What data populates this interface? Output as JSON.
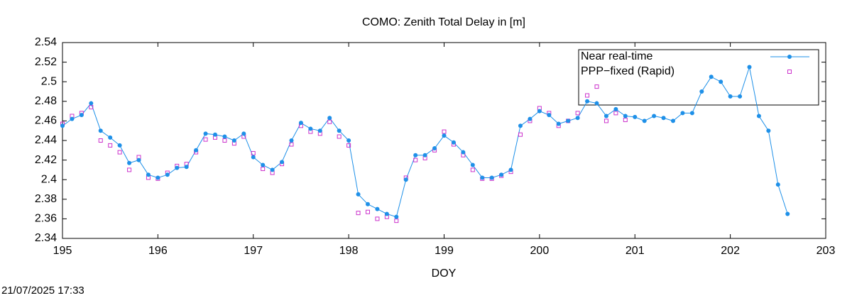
{
  "chart_data": {
    "type": "scatter-line",
    "title": "COMO: Zenith Total Delay in [m]",
    "x_label": "DOY",
    "timestamp": "21/07/2025 17:33",
    "xlim": [
      195,
      203
    ],
    "xticks": [
      195,
      196,
      197,
      198,
      199,
      200,
      201,
      202,
      203
    ],
    "ylim": [
      2.34,
      2.54
    ],
    "yticks": [
      2.34,
      2.36,
      2.38,
      2.4,
      2.42,
      2.44,
      2.46,
      2.48,
      2.5,
      2.52,
      2.54
    ],
    "legend": "top-right",
    "series": [
      {
        "name": "Near real-time",
        "color": "#1e90e8",
        "marker": "circle",
        "line": true,
        "x": [
          195.0,
          195.1,
          195.2,
          195.3,
          195.4,
          195.5,
          195.6,
          195.7,
          195.8,
          195.9,
          196.0,
          196.1,
          196.2,
          196.3,
          196.4,
          196.5,
          196.6,
          196.7,
          196.8,
          196.9,
          197.0,
          197.1,
          197.2,
          197.3,
          197.4,
          197.5,
          197.6,
          197.7,
          197.8,
          197.9,
          198.0,
          198.1,
          198.2,
          198.3,
          198.4,
          198.5,
          198.6,
          198.7,
          198.8,
          198.9,
          199.0,
          199.1,
          199.2,
          199.3,
          199.4,
          199.5,
          199.6,
          199.7,
          199.8,
          199.9,
          200.0,
          200.1,
          200.2,
          200.3,
          200.4,
          200.5,
          200.6,
          200.7,
          200.8,
          200.9,
          201.0,
          201.1,
          201.2,
          201.3,
          201.4,
          201.5,
          201.6,
          201.7,
          201.8,
          201.9,
          202.0,
          202.1,
          202.2,
          202.3,
          202.4,
          202.5,
          202.6
        ],
        "values": [
          2.455,
          2.462,
          2.466,
          2.478,
          2.45,
          2.443,
          2.435,
          2.417,
          2.42,
          2.405,
          2.402,
          2.405,
          2.412,
          2.413,
          2.43,
          2.447,
          2.446,
          2.444,
          2.44,
          2.447,
          2.423,
          2.415,
          2.41,
          2.418,
          2.44,
          2.458,
          2.452,
          2.45,
          2.463,
          2.45,
          2.44,
          2.385,
          2.375,
          2.37,
          2.365,
          2.362,
          2.4,
          2.425,
          2.425,
          2.432,
          2.445,
          2.438,
          2.428,
          2.415,
          2.402,
          2.402,
          2.405,
          2.41,
          2.455,
          2.462,
          2.47,
          2.466,
          2.457,
          2.46,
          2.463,
          2.48,
          2.478,
          2.465,
          2.472,
          2.465,
          2.464,
          2.46,
          2.465,
          2.463,
          2.46,
          2.468,
          2.468,
          2.49,
          2.505,
          2.5,
          2.485,
          2.485,
          2.515,
          2.465,
          2.45,
          2.395,
          2.365
        ]
      },
      {
        "name": "PPP−fixed (Rapid)",
        "color": "#cc33cc",
        "marker": "square",
        "line": false,
        "x": [
          195.0,
          195.1,
          195.2,
          195.3,
          195.4,
          195.5,
          195.6,
          195.7,
          195.8,
          195.9,
          196.0,
          196.1,
          196.2,
          196.3,
          196.4,
          196.5,
          196.6,
          196.7,
          196.8,
          196.9,
          197.0,
          197.1,
          197.2,
          197.3,
          197.4,
          197.5,
          197.6,
          197.7,
          197.8,
          197.9,
          198.0,
          198.1,
          198.2,
          198.3,
          198.4,
          198.5,
          198.6,
          198.7,
          198.8,
          198.9,
          199.0,
          199.1,
          199.2,
          199.3,
          199.4,
          199.5,
          199.6,
          199.7,
          199.8,
          199.9,
          200.0,
          200.1,
          200.2,
          200.3,
          200.4,
          200.5,
          200.6,
          200.7,
          200.8,
          200.9
        ],
        "values": [
          2.457,
          2.465,
          2.468,
          2.474,
          2.44,
          2.435,
          2.428,
          2.41,
          2.423,
          2.402,
          2.401,
          2.407,
          2.414,
          2.416,
          2.428,
          2.441,
          2.443,
          2.44,
          2.437,
          2.444,
          2.427,
          2.411,
          2.407,
          2.416,
          2.436,
          2.455,
          2.449,
          2.447,
          2.459,
          2.444,
          2.435,
          2.366,
          2.367,
          2.36,
          2.362,
          2.358,
          2.402,
          2.42,
          2.422,
          2.43,
          2.449,
          2.436,
          2.425,
          2.41,
          2.401,
          2.401,
          2.404,
          2.408,
          2.446,
          2.46,
          2.473,
          2.468,
          2.455,
          2.46,
          2.468,
          2.486,
          2.495,
          2.46,
          2.468,
          2.461
        ]
      }
    ]
  }
}
